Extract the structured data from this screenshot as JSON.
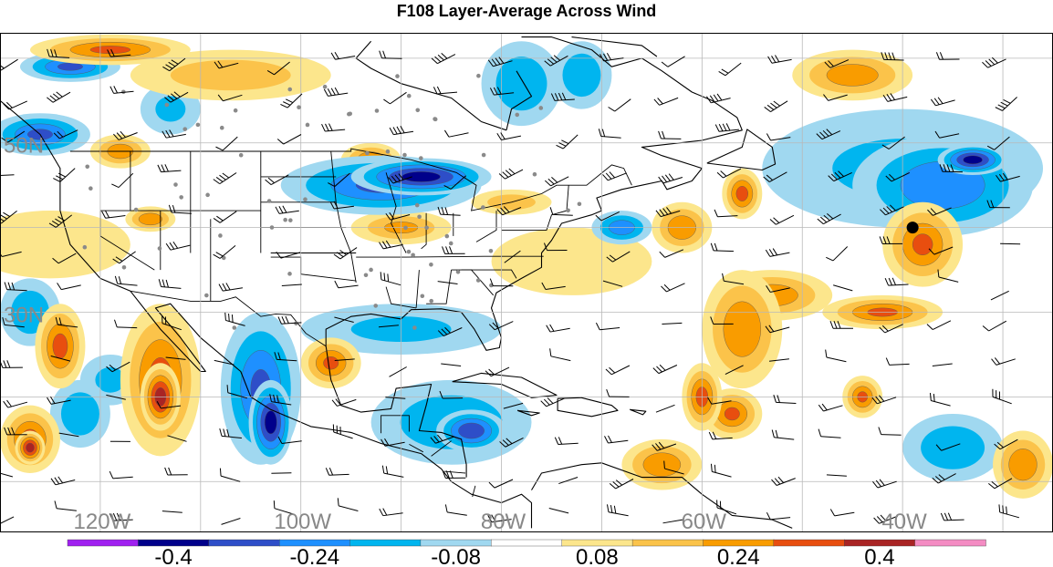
{
  "title": "F108 Layer-Average Across Wind",
  "map": {
    "projection": "cylindrical",
    "lon_range": [
      -130,
      -25
    ],
    "lat_range": [
      4,
      63
    ],
    "lat_labels": [
      {
        "text": "50N",
        "lat": 50
      },
      {
        "text": "30N",
        "lat": 30
      }
    ],
    "lon_labels": [
      {
        "text": "120W",
        "lon": -120
      },
      {
        "text": "100W",
        "lon": -100
      },
      {
        "text": "80W",
        "lon": -80
      },
      {
        "text": "60W",
        "lon": -60
      },
      {
        "text": "40W",
        "lon": -40
      }
    ],
    "label_color": "#888888",
    "grid": true,
    "grid_spacing_deg": 10,
    "field": "layer-average across wind",
    "anomaly_blobs": [
      {
        "lon": -88,
        "lat": 46,
        "value": -0.42,
        "rx": 7,
        "ry": 2.2
      },
      {
        "lon": -92,
        "lat": 45,
        "value": -0.3,
        "rx": 10,
        "ry": 3.5
      },
      {
        "lon": -103,
        "lat": 17,
        "value": -0.42,
        "rx": 2.2,
        "ry": 5
      },
      {
        "lon": -104,
        "lat": 21,
        "value": -0.3,
        "rx": 4,
        "ry": 9
      },
      {
        "lon": -83,
        "lat": 16,
        "value": -0.36,
        "rx": 3.5,
        "ry": 2.5
      },
      {
        "lon": -85,
        "lat": 17,
        "value": -0.2,
        "rx": 8,
        "ry": 5
      },
      {
        "lon": -33,
        "lat": 48,
        "value": -0.42,
        "rx": 3.5,
        "ry": 1.8
      },
      {
        "lon": -36,
        "lat": 45,
        "value": -0.28,
        "rx": 9,
        "ry": 6
      },
      {
        "lon": -40,
        "lat": 47,
        "value": -0.14,
        "rx": 14,
        "ry": 7
      },
      {
        "lon": -123,
        "lat": 59,
        "value": -0.3,
        "rx": 5,
        "ry": 1.8
      },
      {
        "lon": -126,
        "lat": 51,
        "value": -0.3,
        "rx": 5,
        "ry": 2.5
      },
      {
        "lon": -78,
        "lat": 57,
        "value": -0.2,
        "rx": 4,
        "ry": 5
      },
      {
        "lon": -72,
        "lat": 58,
        "value": -0.2,
        "rx": 3,
        "ry": 4
      },
      {
        "lon": -68,
        "lat": 40,
        "value": -0.26,
        "rx": 3,
        "ry": 2
      },
      {
        "lon": -35,
        "lat": 14,
        "value": -0.2,
        "rx": 5,
        "ry": 4
      },
      {
        "lon": -127,
        "lat": 30,
        "value": -0.2,
        "rx": 3,
        "ry": 4
      },
      {
        "lon": -122,
        "lat": 18,
        "value": -0.2,
        "rx": 3,
        "ry": 4
      },
      {
        "lon": -119,
        "lat": 22,
        "value": -0.14,
        "rx": 3,
        "ry": 3
      },
      {
        "lon": -90,
        "lat": 28,
        "value": -0.14,
        "rx": 10,
        "ry": 3
      },
      {
        "lon": -113,
        "lat": 54,
        "value": -0.14,
        "rx": 3,
        "ry": 3
      },
      {
        "lon": -115,
        "lat": 41,
        "value": 0.28,
        "rx": 2.5,
        "ry": 1.5
      },
      {
        "lon": -107,
        "lat": 58,
        "value": 0.18,
        "rx": 10,
        "ry": 3
      },
      {
        "lon": -119,
        "lat": 61,
        "value": 0.3,
        "rx": 8,
        "ry": 1.8
      },
      {
        "lon": -114,
        "lat": 22,
        "value": 0.32,
        "rx": 4,
        "ry": 9
      },
      {
        "lon": -114,
        "lat": 20,
        "value": 0.42,
        "rx": 2,
        "ry": 4
      },
      {
        "lon": -124,
        "lat": 26,
        "value": 0.32,
        "rx": 2.5,
        "ry": 5
      },
      {
        "lon": -127,
        "lat": 15,
        "value": 0.32,
        "rx": 3,
        "ry": 4
      },
      {
        "lon": -127,
        "lat": 14,
        "value": 0.42,
        "rx": 1.5,
        "ry": 2
      },
      {
        "lon": -97,
        "lat": 24,
        "value": 0.3,
        "rx": 3,
        "ry": 3
      },
      {
        "lon": -90,
        "lat": 40,
        "value": 0.22,
        "rx": 5,
        "ry": 2
      },
      {
        "lon": -93,
        "lat": 48,
        "value": 0.28,
        "rx": 3,
        "ry": 2
      },
      {
        "lon": -79,
        "lat": 43,
        "value": 0.18,
        "rx": 4,
        "ry": 1.5
      },
      {
        "lon": -62,
        "lat": 40,
        "value": 0.28,
        "rx": 3,
        "ry": 3
      },
      {
        "lon": -56,
        "lat": 44,
        "value": 0.32,
        "rx": 2,
        "ry": 3
      },
      {
        "lon": -53,
        "lat": 32,
        "value": 0.26,
        "rx": 6,
        "ry": 3
      },
      {
        "lon": -56,
        "lat": 28,
        "value": 0.28,
        "rx": 4,
        "ry": 7
      },
      {
        "lon": -60,
        "lat": 20,
        "value": 0.32,
        "rx": 2,
        "ry": 4
      },
      {
        "lon": -57,
        "lat": 18,
        "value": 0.3,
        "rx": 3,
        "ry": 3
      },
      {
        "lon": -38,
        "lat": 38,
        "value": 0.3,
        "rx": 4,
        "ry": 5
      },
      {
        "lon": -42,
        "lat": 30,
        "value": 0.3,
        "rx": 6,
        "ry": 2
      },
      {
        "lon": -44,
        "lat": 20,
        "value": 0.3,
        "rx": 2,
        "ry": 2.5
      },
      {
        "lon": -64,
        "lat": 12,
        "value": 0.28,
        "rx": 4,
        "ry": 3
      },
      {
        "lon": -45,
        "lat": 58,
        "value": 0.26,
        "rx": 6,
        "ry": 3
      },
      {
        "lon": -28,
        "lat": 12,
        "value": 0.28,
        "rx": 3,
        "ry": 4
      },
      {
        "lon": -118,
        "lat": 49,
        "value": 0.26,
        "rx": 3,
        "ry": 2
      },
      {
        "lon": -125,
        "lat": 38,
        "value": 0.12,
        "rx": 8,
        "ry": 4
      },
      {
        "lon": -73,
        "lat": 36,
        "value": 0.12,
        "rx": 8,
        "ry": 4
      }
    ],
    "wind_barbs": true,
    "observation_dots": true,
    "marker": {
      "lon": -39,
      "lat": 40,
      "label": ""
    }
  },
  "colorbar": {
    "bins": [
      {
        "upper": -0.44,
        "color": "#a020f0"
      },
      {
        "upper": -0.36,
        "color": "#00008b"
      },
      {
        "upper": -0.28,
        "color": "#2e4ec8"
      },
      {
        "upper": -0.2,
        "color": "#1e90ff"
      },
      {
        "upper": -0.12,
        "color": "#00b5ef"
      },
      {
        "upper": -0.04,
        "color": "#a0d8f0"
      },
      {
        "upper": 0.04,
        "color": "#ffffff"
      },
      {
        "upper": 0.12,
        "color": "#fce68c"
      },
      {
        "upper": 0.2,
        "color": "#fbc34a"
      },
      {
        "upper": 0.28,
        "color": "#f99c00"
      },
      {
        "upper": 0.36,
        "color": "#e84e0f"
      },
      {
        "upper": 0.44,
        "color": "#a92424"
      },
      {
        "upper": 0.5,
        "color": "#f48cc3"
      }
    ],
    "tick_labels": [
      "-0.4",
      "-0.24",
      "-0.08",
      "0.08",
      "0.24",
      "0.4"
    ],
    "tick_values": [
      -0.4,
      -0.24,
      -0.08,
      0.08,
      0.24,
      0.4
    ]
  }
}
